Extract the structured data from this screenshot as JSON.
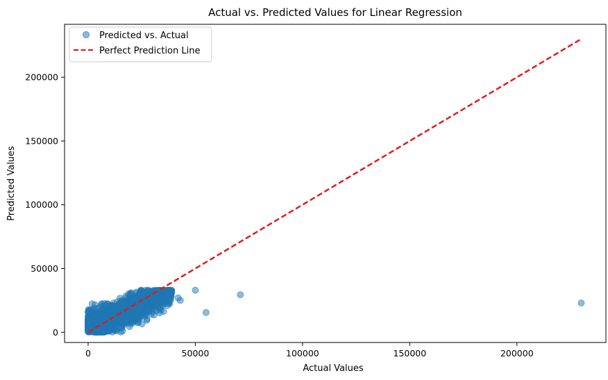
{
  "chart_data": {
    "type": "scatter",
    "title": "Actual vs. Predicted Values for Linear Regression",
    "xlabel": "Actual Values",
    "ylabel": "Predicted Values",
    "xlim": [
      -11000,
      241500
    ],
    "ylim": [
      -8000,
      241500
    ],
    "xticks": [
      0,
      50000,
      100000,
      150000,
      200000
    ],
    "yticks": [
      0,
      50000,
      100000,
      150000,
      200000
    ],
    "xtick_labels": [
      "0",
      "50000",
      "100000",
      "150000",
      "200000"
    ],
    "ytick_labels": [
      "0",
      "50000",
      "100000",
      "150000",
      "200000"
    ],
    "grid": false,
    "legend_position": "top-left",
    "series": [
      {
        "name": "Predicted vs. Actual",
        "kind": "scatter",
        "color": "#1f77b4",
        "alpha": 0.5,
        "outliers": [
          {
            "x": 50000,
            "y": 33000
          },
          {
            "x": 55000,
            "y": 15500
          },
          {
            "x": 71000,
            "y": 29500
          },
          {
            "x": 230000,
            "y": 23000
          },
          {
            "x": 42000,
            "y": 27000
          },
          {
            "x": 43000,
            "y": 25000
          }
        ],
        "cluster": {
          "x_range": [
            0,
            42000
          ],
          "y_range": [
            0,
            33000
          ],
          "approx_trend": "y ≈ 0.75x + 3000, capped near 33000",
          "estimated_point_count": 2500
        }
      },
      {
        "name": "Perfect Prediction Line",
        "kind": "line",
        "style": "dashed",
        "color": "#e41a1c",
        "x": [
          0,
          230000
        ],
        "y": [
          0,
          230000
        ]
      }
    ]
  }
}
